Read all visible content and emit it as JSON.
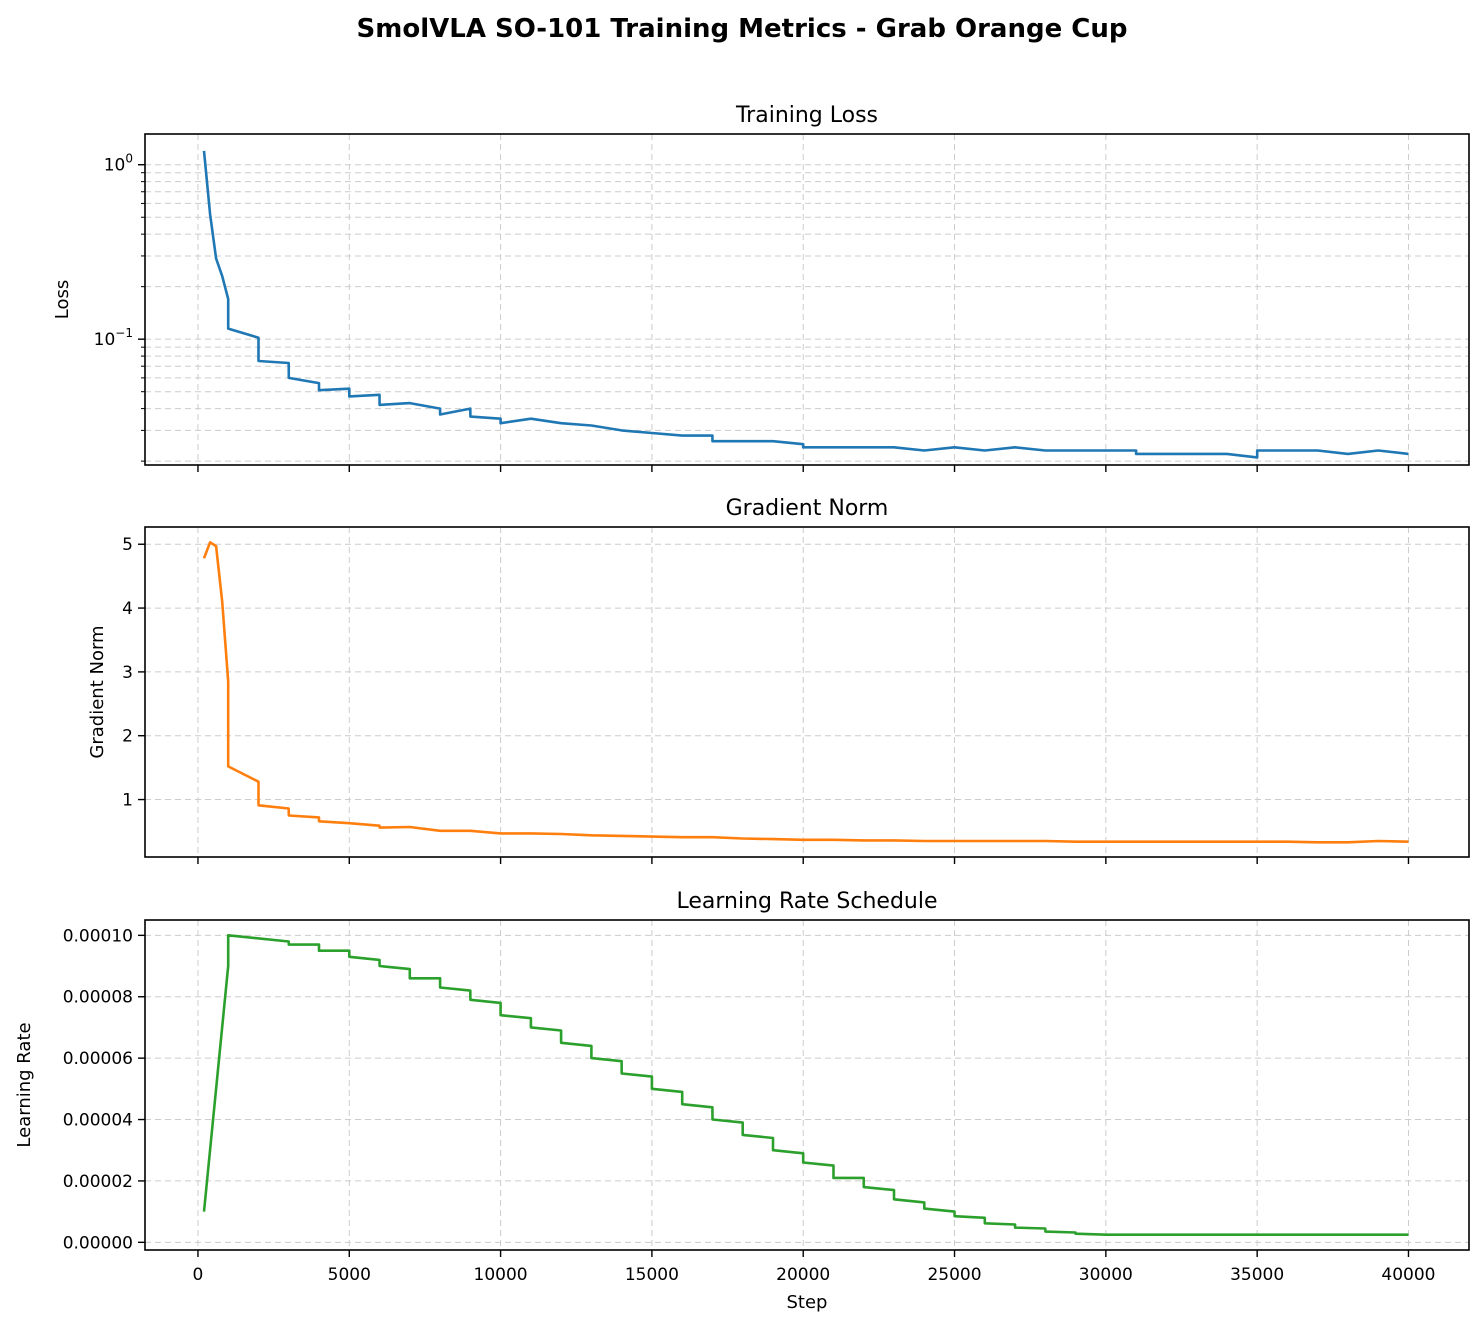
{
  "figure": {
    "title": "SmolVLA SO-101 Training Metrics - Grab Orange Cup"
  },
  "colors": {
    "loss": "#1f77b4",
    "grad": "#ff7f0e",
    "lr": "#2ca02c"
  },
  "chart_data": [
    {
      "type": "line",
      "title": "Training Loss",
      "xlabel": "",
      "ylabel": "Loss",
      "yscale": "log",
      "ylim": [
        0.019,
        1.5
      ],
      "xlim": [
        -1750,
        42000
      ],
      "grid": true,
      "x_tick_labels_visible": false,
      "y_ticks": [
        {
          "value": 1,
          "label": "10^0"
        },
        {
          "value": 0.1,
          "label": "10^-1"
        }
      ],
      "x": [
        200,
        400,
        600,
        800,
        999,
        1000,
        2000,
        2001,
        3000,
        3001,
        4000,
        4001,
        5000,
        5001,
        6000,
        6001,
        7000,
        8000,
        8001,
        9000,
        9001,
        10000,
        10001,
        11000,
        12000,
        13000,
        14000,
        15000,
        16000,
        17000,
        17001,
        18000,
        19000,
        20000,
        20001,
        21000,
        22000,
        23000,
        24000,
        25000,
        26000,
        27000,
        28000,
        29000,
        30000,
        31000,
        31001,
        32000,
        33000,
        34000,
        35000,
        35001,
        36000,
        37000,
        38000,
        39000,
        40000
      ],
      "series": [
        {
          "name": "",
          "values": [
            1.2,
            0.52,
            0.29,
            0.23,
            0.17,
            0.115,
            0.102,
            0.075,
            0.073,
            0.06,
            0.056,
            0.051,
            0.052,
            0.047,
            0.048,
            0.042,
            0.043,
            0.04,
            0.037,
            0.04,
            0.036,
            0.035,
            0.033,
            0.035,
            0.033,
            0.032,
            0.03,
            0.029,
            0.028,
            0.028,
            0.026,
            0.026,
            0.026,
            0.025,
            0.024,
            0.024,
            0.024,
            0.024,
            0.023,
            0.024,
            0.023,
            0.024,
            0.023,
            0.023,
            0.023,
            0.023,
            0.022,
            0.022,
            0.022,
            0.022,
            0.021,
            0.023,
            0.023,
            0.023,
            0.022,
            0.023,
            0.022
          ]
        }
      ]
    },
    {
      "type": "line",
      "title": "Gradient Norm",
      "xlabel": "",
      "ylabel": "Gradient Norm",
      "ylim": [
        0.1,
        5.27
      ],
      "xlim": [
        -1750,
        42000
      ],
      "grid": true,
      "x_tick_labels_visible": false,
      "y_ticks": [
        1,
        2,
        3,
        4,
        5
      ],
      "x": [
        200,
        400,
        600,
        800,
        999,
        1000,
        2000,
        2001,
        3000,
        3001,
        4000,
        4001,
        5000,
        6000,
        6001,
        7000,
        8000,
        9000,
        10000,
        11000,
        12000,
        13000,
        14000,
        15000,
        16000,
        17000,
        18000,
        19000,
        20000,
        21000,
        22000,
        23000,
        24000,
        25000,
        26000,
        27000,
        28000,
        29000,
        30000,
        31000,
        32000,
        33000,
        34000,
        35000,
        36000,
        37000,
        38000,
        39000,
        40000
      ],
      "series": [
        {
          "name": "",
          "values": [
            4.78,
            5.03,
            4.97,
            4.1,
            2.85,
            1.52,
            1.28,
            0.91,
            0.86,
            0.75,
            0.72,
            0.66,
            0.63,
            0.59,
            0.56,
            0.57,
            0.51,
            0.51,
            0.47,
            0.47,
            0.46,
            0.44,
            0.43,
            0.42,
            0.41,
            0.41,
            0.39,
            0.38,
            0.37,
            0.37,
            0.36,
            0.36,
            0.35,
            0.35,
            0.35,
            0.35,
            0.35,
            0.34,
            0.34,
            0.34,
            0.34,
            0.34,
            0.34,
            0.34,
            0.34,
            0.33,
            0.33,
            0.35,
            0.34
          ]
        }
      ]
    },
    {
      "type": "line",
      "title": "Learning Rate Schedule",
      "xlabel": "Step",
      "ylabel": "Learning Rate",
      "ylim": [
        -2.5e-06,
        0.000105
      ],
      "xlim": [
        -1750,
        42000
      ],
      "grid": true,
      "x_tick_labels_visible": true,
      "x_ticks": [
        0,
        5000,
        10000,
        15000,
        20000,
        25000,
        30000,
        35000,
        40000
      ],
      "y_ticks": [
        0,
        2e-05,
        4e-05,
        6e-05,
        8e-05,
        0.0001
      ],
      "y_tick_labels": [
        "0.00000",
        "0.00002",
        "0.00004",
        "0.00006",
        "0.00008",
        "0.00010"
      ],
      "x": [
        200,
        999,
        1000,
        3000,
        3001,
        4000,
        4001,
        5000,
        5001,
        6000,
        6001,
        7000,
        7001,
        8000,
        8001,
        9000,
        9001,
        10000,
        10001,
        11000,
        11001,
        12000,
        12001,
        13000,
        13001,
        14000,
        14001,
        15000,
        15001,
        16000,
        16001,
        17000,
        17001,
        18000,
        18001,
        19000,
        19001,
        20000,
        20001,
        21000,
        21001,
        22000,
        22001,
        23000,
        23001,
        24000,
        24001,
        25000,
        25001,
        26000,
        26001,
        27000,
        27001,
        28000,
        28001,
        29000,
        29001,
        30000,
        35000,
        40000
      ],
      "series": [
        {
          "name": "",
          "values": [
            1e-05,
            9e-05,
            0.0001,
            9.8e-05,
            9.7e-05,
            9.7e-05,
            9.5e-05,
            9.5e-05,
            9.3e-05,
            9.2e-05,
            9e-05,
            8.9e-05,
            8.6e-05,
            8.6e-05,
            8.3e-05,
            8.2e-05,
            7.9e-05,
            7.8e-05,
            7.4e-05,
            7.3e-05,
            7e-05,
            6.9e-05,
            6.5e-05,
            6.4e-05,
            6e-05,
            5.9e-05,
            5.5e-05,
            5.4e-05,
            5e-05,
            4.9e-05,
            4.5e-05,
            4.4e-05,
            4e-05,
            3.9e-05,
            3.5e-05,
            3.4e-05,
            3e-05,
            2.9e-05,
            2.6e-05,
            2.5e-05,
            2.1e-05,
            2.1e-05,
            1.8e-05,
            1.7e-05,
            1.4e-05,
            1.3e-05,
            1.1e-05,
            1e-05,
            8.5e-06,
            8e-06,
            6.2e-06,
            5.8e-06,
            4.8e-06,
            4.5e-06,
            3.5e-06,
            3.2e-06,
            2.8e-06,
            2.5e-06,
            2.5e-06,
            2.5e-06
          ]
        }
      ]
    }
  ]
}
